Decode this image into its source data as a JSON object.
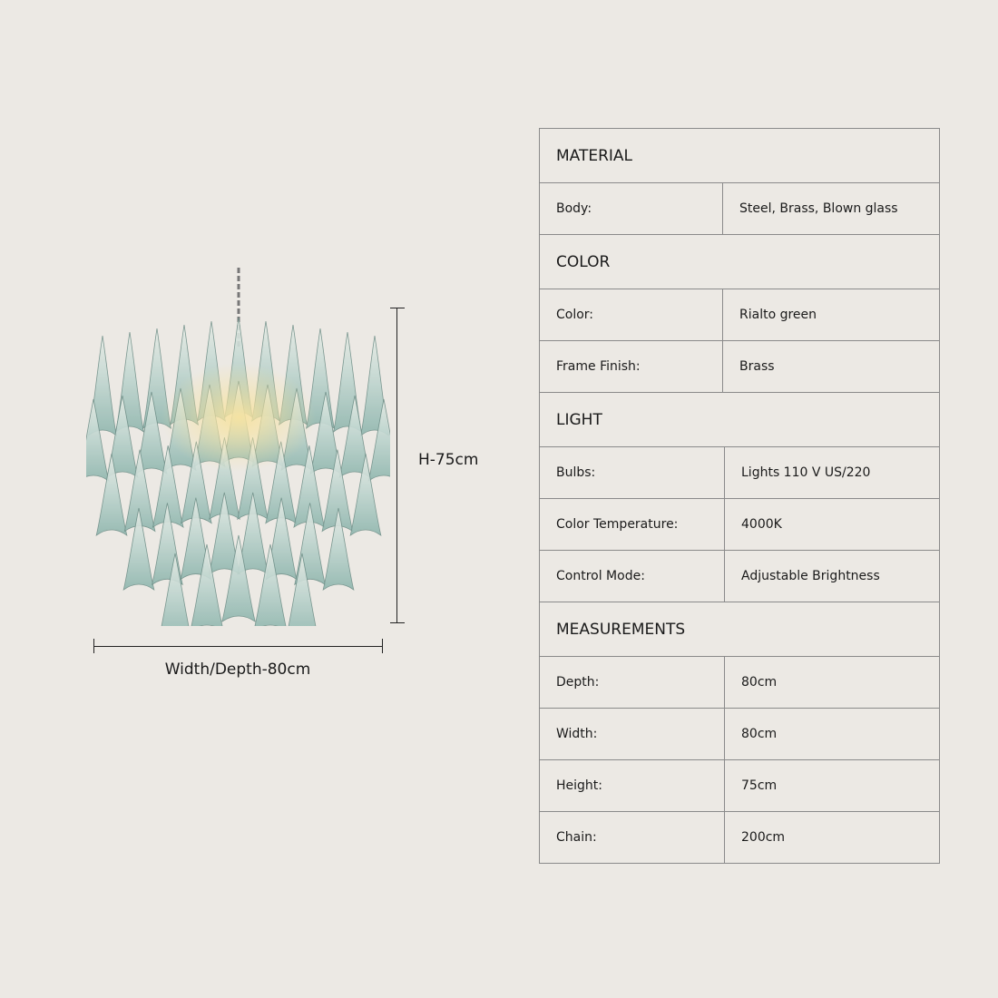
{
  "product_image": {
    "icon": "glass-petal-chandelier",
    "glass_color": "#9dbfb8",
    "light_color": "#f3d98a"
  },
  "dimensions": {
    "height_label": "H-75cm",
    "width_label": "Width/Depth-80cm"
  },
  "spec": [
    {
      "title": "MATERIAL",
      "rows": [
        {
          "key": "Body:",
          "value": "Steel, Brass, Blown glass"
        }
      ]
    },
    {
      "title": "COLOR",
      "rows": [
        {
          "key": "Color:",
          "value": "Rialto green"
        },
        {
          "key": "Frame Finish:",
          "value": "Brass"
        }
      ]
    },
    {
      "title": "LIGHT",
      "rows": [
        {
          "key": "Bulbs:",
          "value": "Lights 110 V US/220"
        },
        {
          "key": "Color Temperature:",
          "value": "4000K"
        },
        {
          "key": "Control Mode:",
          "value": "Adjustable Brightness"
        }
      ]
    },
    {
      "title": "MEASUREMENTS",
      "rows": [
        {
          "key": "Depth:",
          "value": "80cm"
        },
        {
          "key": "Width:",
          "value": "80cm"
        },
        {
          "key": "Height:",
          "value": "75cm"
        },
        {
          "key": "Chain:",
          "value": "200cm"
        }
      ]
    }
  ]
}
